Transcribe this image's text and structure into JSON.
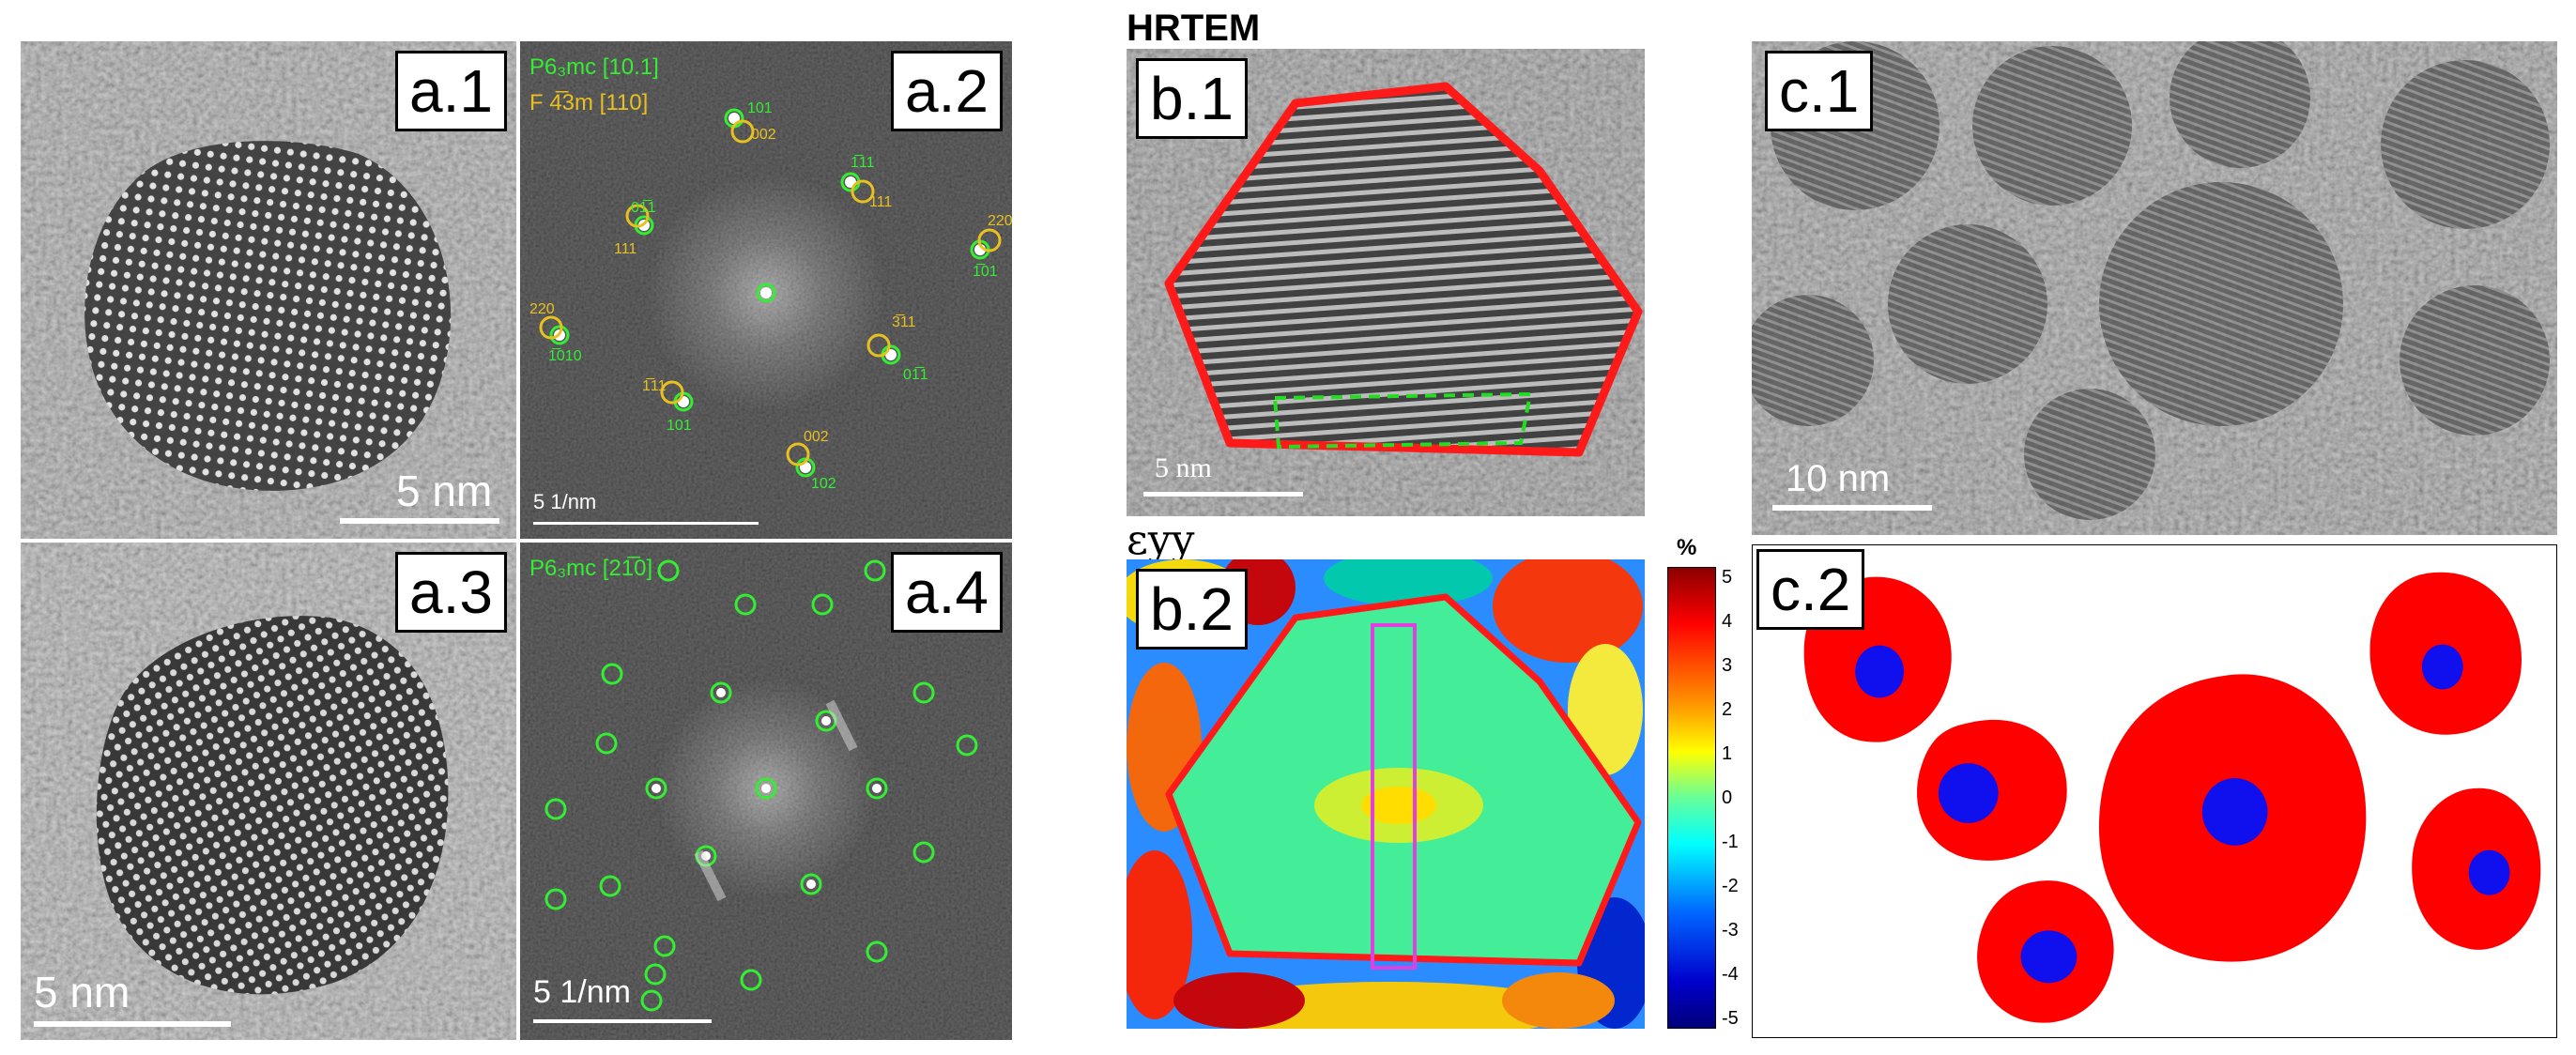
{
  "panels": {
    "a1": {
      "tag": "a.1",
      "scale": "5 nm"
    },
    "a2": {
      "tag": "a.2",
      "phase1": "P6₃mc [10.1]",
      "phase2": "F 4̅3m [110]",
      "scale": "5 1/nm",
      "spots_green": [
        "101",
        "1̅11",
        "01̅1",
        "1̅01",
        "1̅010",
        "01̅1",
        "101",
        "1̅10",
        "102"
      ],
      "spots_yellow": [
        "002",
        "111",
        "111",
        "220",
        "220",
        "111",
        "1̅11",
        "002",
        "3̅11"
      ]
    },
    "a3": {
      "tag": "a.3",
      "scale": "5 nm"
    },
    "a4": {
      "tag": "a.4",
      "phase": "P6₃mc [21̅0]",
      "scale": "5 1/nm"
    },
    "b1": {
      "tag": "b.1",
      "heading": "HRTEM",
      "scale": "5 nm"
    },
    "b2": {
      "tag": "b.2",
      "title": "εyy",
      "colorbar_unit": "%",
      "colorbar_ticks": [
        "5",
        "4",
        "3",
        "2",
        "1",
        "0",
        "-1",
        "-2",
        "-3",
        "-4",
        "-5"
      ]
    },
    "c1": {
      "tag": "c.1",
      "scale": "10 nm"
    },
    "c2": {
      "tag": "c.2"
    }
  },
  "colors": {
    "outline_red": "#ff1a1a",
    "dash_green": "#22dd22",
    "box_magenta": "#e040e0",
    "green_spot": "#33ee33",
    "yellow_spot": "#e8c020",
    "particle_red": "#ff0000",
    "core_blue": "#1010ee"
  }
}
